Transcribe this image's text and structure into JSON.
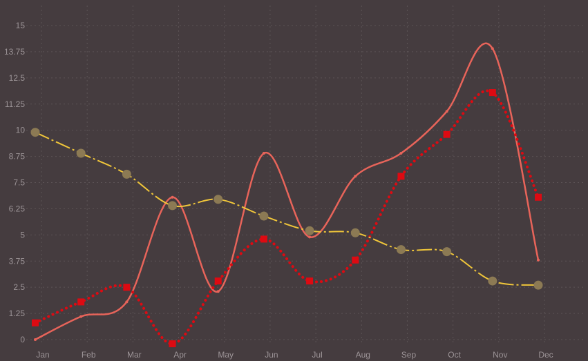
{
  "chart_data": {
    "type": "line",
    "title": "",
    "xlabel": "",
    "ylabel": "",
    "categories": [
      "Jan",
      "Feb",
      "Mar",
      "Apr",
      "May",
      "Jun",
      "Jul",
      "Aug",
      "Sep",
      "Oct",
      "Nov",
      "Dec"
    ],
    "ylim": [
      0,
      15
    ],
    "y_ticks": [
      "0",
      "1.25",
      "2.5",
      "3.75",
      "5",
      "6.25",
      "7.5",
      "8.75",
      "10",
      "11.25",
      "12.5",
      "13.75",
      "15"
    ],
    "grid": true,
    "legend": "none",
    "series": [
      {
        "values": [
          0,
          1.1,
          1.8,
          6.8,
          2.3,
          8.9,
          4.9,
          7.8,
          8.9,
          10.9,
          13.9,
          3.8
        ],
        "color": "#e8645a",
        "line": "solid",
        "marker": "none"
      },
      {
        "values": [
          0.8,
          1.8,
          2.5,
          -0.2,
          2.8,
          4.8,
          2.8,
          3.8,
          7.8,
          9.8,
          11.8,
          6.8
        ],
        "color": "#dd0a12",
        "line": "dotted",
        "marker": "square"
      },
      {
        "values": [
          9.9,
          8.9,
          7.9,
          6.4,
          6.7,
          5.9,
          5.2,
          5.1,
          4.3,
          4.2,
          2.8,
          2.6
        ],
        "color": "#f0c63a",
        "marker_color": "#8c7a54",
        "line": "dashed",
        "marker": "circle"
      }
    ]
  }
}
